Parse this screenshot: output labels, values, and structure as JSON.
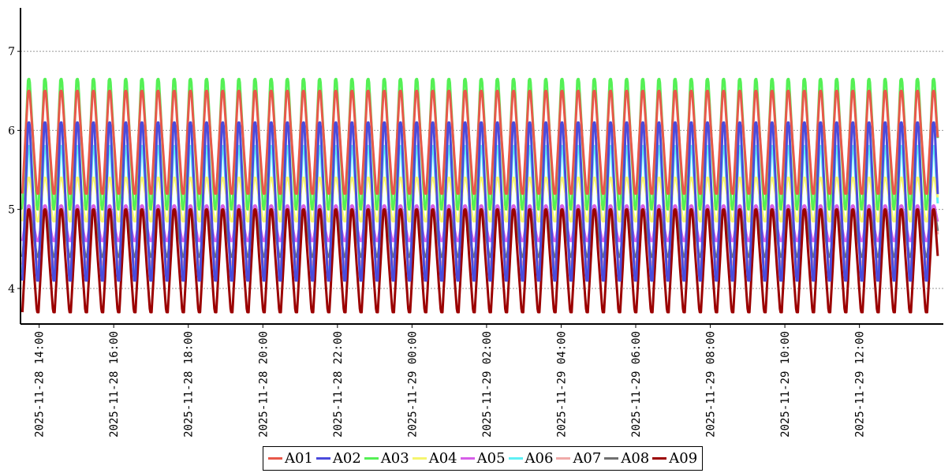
{
  "chart_data": {
    "type": "line",
    "title": "",
    "xlabel": "",
    "ylabel": "",
    "x_range": [
      "2025-11-28 13:30",
      "2025-11-29 14:15"
    ],
    "ylim": [
      3.55,
      7.55
    ],
    "yticks": [
      "4",
      "5",
      "6",
      "7"
    ],
    "xticks": [
      {
        "t": "2025-11-28 14:00",
        "label": "2025-11-28 14:00"
      },
      {
        "t": "2025-11-28 16:00",
        "label": "2025-11-28 16:00"
      },
      {
        "t": "2025-11-28 18:00",
        "label": "2025-11-28 18:00"
      },
      {
        "t": "2025-11-28 20:00",
        "label": "2025-11-28 20:00"
      },
      {
        "t": "2025-11-28 22:00",
        "label": "2025-11-28 22:00"
      },
      {
        "t": "2025-11-29 00:00",
        "label": "2025-11-29 00:00"
      },
      {
        "t": "2025-11-29 02:00",
        "label": "2025-11-29 02:00"
      },
      {
        "t": "2025-11-29 04:00",
        "label": "2025-11-29 04:00"
      },
      {
        "t": "2025-11-29 06:00",
        "label": "2025-11-29 06:00"
      },
      {
        "t": "2025-11-29 08:00",
        "label": "2025-11-29 08:00"
      },
      {
        "t": "2025-11-29 10:00",
        "label": "2025-11-29 10:00"
      },
      {
        "t": "2025-11-29 12:00",
        "label": "2025-11-29 12:00"
      }
    ],
    "grid": "horizontal dotted",
    "legend": "bottom-center",
    "oscillation": {
      "period_minutes": 26,
      "start": "2025-11-28 13:33",
      "end": "2025-11-29 14:06"
    },
    "series": [
      {
        "name": "A01",
        "color": "#e8584a",
        "min": 5.2,
        "max": 6.5
      },
      {
        "name": "A02",
        "color": "#4b4bdc",
        "min": 4.1,
        "max": 6.1
      },
      {
        "name": "A03",
        "color": "#55f055",
        "min": 5.0,
        "max": 6.65
      },
      {
        "name": "A04",
        "color": "#f5f56e",
        "min": 4.85,
        "max": 5.4
      },
      {
        "name": "A05",
        "color": "#d65ee8",
        "min": 4.6,
        "max": 5.05
      },
      {
        "name": "A06",
        "color": "#5ef0f5",
        "min": 4.2,
        "max": 5.8
      },
      {
        "name": "A07",
        "color": "#f0aaa8",
        "min": 4.3,
        "max": 5.0
      },
      {
        "name": "A08",
        "color": "#707070",
        "min": 4.4,
        "max": 5.0
      },
      {
        "name": "A09",
        "color": "#9b0000",
        "min": 3.7,
        "max": 5.0
      }
    ]
  }
}
